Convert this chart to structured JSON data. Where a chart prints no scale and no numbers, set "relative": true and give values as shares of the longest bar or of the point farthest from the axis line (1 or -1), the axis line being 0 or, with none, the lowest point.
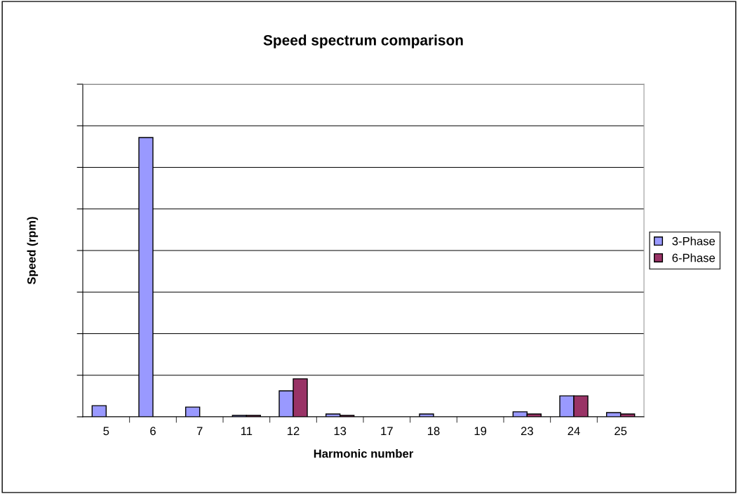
{
  "chart_data": {
    "type": "bar",
    "title": "Speed spectrum comparison",
    "xlabel": "Harmonic number",
    "ylabel": "Speed (rpm)",
    "relative": true,
    "grid": "y",
    "legend": "right",
    "categories": [
      "5",
      "6",
      "7",
      "11",
      "12",
      "13",
      "17",
      "18",
      "19",
      "23",
      "24",
      "25"
    ],
    "series": [
      {
        "name": "3-Phase",
        "color": "#9999ff",
        "values": [
          0.04,
          1,
          0.035,
          0.005,
          0.093,
          0.01,
          null,
          0.01,
          null,
          0.018,
          0.075,
          0.015
        ]
      },
      {
        "name": "6-Phase",
        "color": "#993366",
        "values": [
          null,
          null,
          null,
          0.005,
          0.136,
          0.005,
          null,
          null,
          null,
          0.01,
          0.075,
          0.01
        ]
      }
    ]
  }
}
